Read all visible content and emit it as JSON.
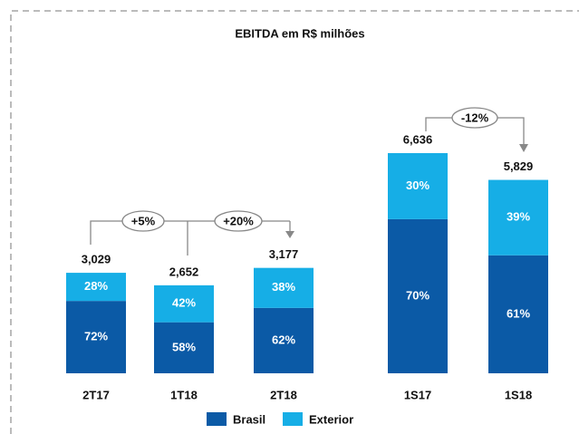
{
  "chart_data": {
    "type": "bar",
    "title": "EBITDA  em R$ milhões",
    "categories": [
      "2T17",
      "1T18",
      "2T18",
      "1S17",
      "1S18"
    ],
    "totals": [
      3029,
      2652,
      3177,
      6636,
      5829
    ],
    "total_labels": [
      "3,029",
      "2,652",
      "3,177",
      "6,636",
      "5,829"
    ],
    "series": [
      {
        "name": "Brasil",
        "color": "#0b5aa6",
        "values": [
          72,
          58,
          62,
          70,
          61
        ],
        "value_labels": [
          "72%",
          "58%",
          "62%",
          "70%",
          "61%"
        ]
      },
      {
        "name": "Exterior",
        "color": "#16aee6",
        "values": [
          28,
          42,
          38,
          30,
          39
        ],
        "value_labels": [
          "28%",
          "42%",
          "38%",
          "30%",
          "39%"
        ]
      }
    ],
    "annotations": [
      "+5%",
      "+20%",
      "-12%"
    ]
  }
}
